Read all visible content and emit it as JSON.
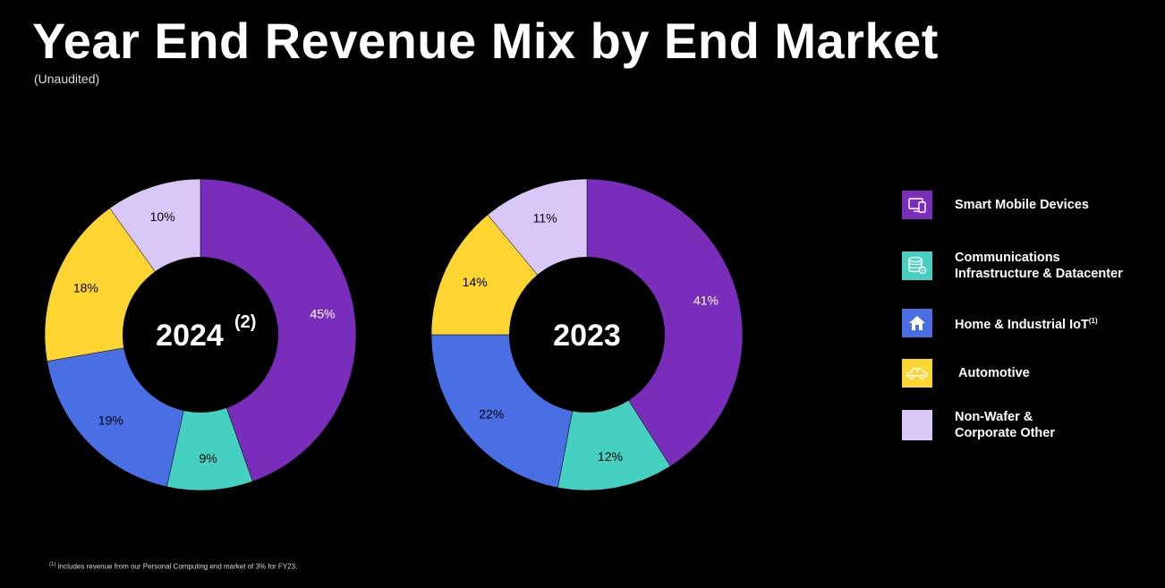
{
  "title": "Year End Revenue Mix by End Market",
  "subtitle": "(Unaudited)",
  "chart_data": [
    {
      "type": "pie",
      "donut": true,
      "center_label": "2024",
      "center_sup": "(2)",
      "categories": [
        "Smart Mobile Devices",
        "Communications Infrastructure & Datacenter",
        "Home & Industrial IoT",
        "Automotive",
        "Non-Wafer & Corporate Other"
      ],
      "values": [
        45,
        9,
        19,
        18,
        10
      ],
      "labels": [
        "45%",
        "9%",
        "19%",
        "18%",
        "10%"
      ]
    },
    {
      "type": "pie",
      "donut": true,
      "center_label": "2023",
      "center_sup": "",
      "categories": [
        "Smart Mobile Devices",
        "Communications Infrastructure & Datacenter",
        "Home & Industrial IoT",
        "Automotive",
        "Non-Wafer & Corporate Other"
      ],
      "values": [
        41,
        12,
        22,
        14,
        11
      ],
      "labels": [
        "41%",
        "12%",
        "22%",
        "14%",
        "11%"
      ]
    }
  ],
  "colors": [
    "#7a2cba",
    "#45d0c1",
    "#4a6ee3",
    "#fcd533",
    "#d9c8f7"
  ],
  "legend": [
    {
      "line1": "Smart Mobile Devices",
      "line2": "",
      "sup": "",
      "icon": "smart-mobile-devices-icon",
      "color": "#7a2cba"
    },
    {
      "line1": "Communications",
      "line2": "Infrastructure & Datacenter",
      "sup": "",
      "icon": "datacenter-icon",
      "color": "#45d0c1"
    },
    {
      "line1": "Home & Industrial IoT",
      "line2": "",
      "sup": "(1)",
      "icon": "home-icon",
      "color": "#4a6ee3"
    },
    {
      "line1": "Automotive",
      "line2": "",
      "sup": "",
      "icon": "car-icon",
      "color": "#fcd533"
    },
    {
      "line1": "Non-Wafer &",
      "line2": "Corporate Other",
      "sup": "",
      "icon": "",
      "color": "#d9c8f7"
    }
  ],
  "footnote": {
    "sup": "(1)",
    "text": "Includes revenue from our Personal Computing end market of 3% for FY23."
  }
}
